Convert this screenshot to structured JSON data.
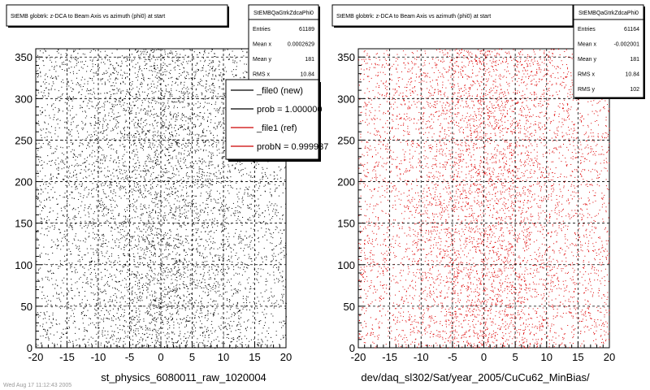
{
  "panels": [
    {
      "title": "StEMB globtrk: z-DCA to Beam Axis vs azimuth (phi0) at start",
      "stats": {
        "name": "StEMBQaGtrkZdcaPhi0",
        "rows": [
          {
            "label": "Entries",
            "value": "61189"
          },
          {
            "label": "Mean x",
            "value": "0.0002629"
          },
          {
            "label": "Mean y",
            "value": "181"
          },
          {
            "label": "RMS x",
            "value": "10.84"
          }
        ]
      },
      "legend": [
        {
          "text": "_file0 (new)",
          "color": "#000000"
        },
        {
          "text": "prob = 1.000000",
          "color": "#000000"
        },
        {
          "text": "_file1 (ref)",
          "color": "#cc0000"
        },
        {
          "text": "probN = 0.999937",
          "color": "#cc0000"
        }
      ],
      "caption": "st_physics_6080011_raw_1020004",
      "point_color": "#000000"
    },
    {
      "title": "StEMB globtrk: z-DCA to Beam Axis vs azimuth (phi0) at start",
      "stats": {
        "name": "StEMBQaGtrkZdcaPhi0",
        "rows": [
          {
            "label": "Entries",
            "value": "61164"
          },
          {
            "label": "Mean x",
            "value": "-0.002001"
          },
          {
            "label": "Mean y",
            "value": "181"
          },
          {
            "label": "RMS x",
            "value": "10.84"
          },
          {
            "label": "RMS y",
            "value": "102"
          }
        ]
      },
      "caption": "dev/daq_sl302/Sat/year_2005/CuCu62_MinBias/",
      "point_color": "#dd0000"
    }
  ],
  "footer_text": "Wed Aug 17 11:12:43 2005",
  "chart_data": [
    {
      "type": "scatter",
      "title": "StEMB globtrk: z-DCA to Beam Axis vs azimuth (phi0) at start",
      "xlim": [
        -20,
        20
      ],
      "ylim": [
        0,
        360
      ],
      "x_ticks": [
        -20,
        -15,
        -10,
        -5,
        0,
        5,
        10,
        15,
        20
      ],
      "y_ticks": [
        0,
        50,
        100,
        150,
        200,
        250,
        300,
        350
      ],
      "grid": true,
      "series": [
        {
          "name": "_file0 (new)",
          "entries": 61189,
          "mean_x": 0.0002629,
          "mean_y": 181,
          "rms_x": 10.84,
          "density_peak_x": 0
        }
      ]
    },
    {
      "type": "scatter",
      "title": "StEMB globtrk: z-DCA to Beam Axis vs azimuth (phi0) at start",
      "xlim": [
        -20,
        20
      ],
      "ylim": [
        0,
        360
      ],
      "x_ticks": [
        -20,
        -15,
        -10,
        -5,
        0,
        5,
        10,
        15,
        20
      ],
      "y_ticks": [
        0,
        50,
        100,
        150,
        200,
        250,
        300,
        350
      ],
      "grid": true,
      "series": [
        {
          "name": "_file1 (ref)",
          "entries": 61164,
          "mean_x": -0.002001,
          "mean_y": 181,
          "rms_x": 10.84,
          "rms_y": 102,
          "density_peak_x": 0
        }
      ]
    }
  ]
}
